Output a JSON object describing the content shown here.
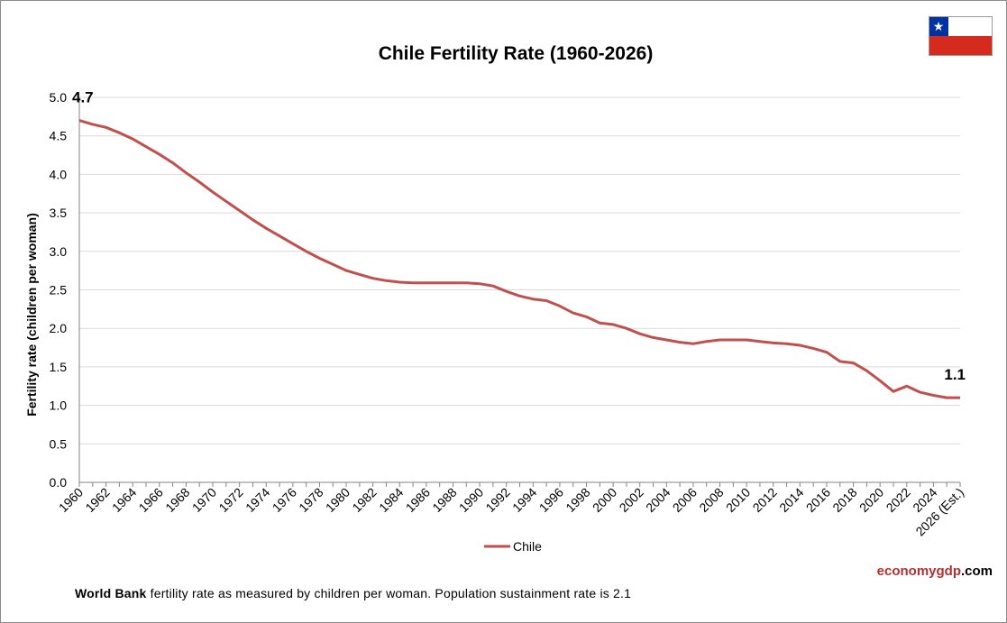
{
  "chart_data": {
    "type": "line",
    "title": "Chile Fertility Rate (1960-2026)",
    "ylabel": "Fertility rate (children per woman)",
    "xlabel": "",
    "ylim": [
      0,
      5
    ],
    "yticks": [
      "0.0",
      "0.5",
      "1.0",
      "1.5",
      "2.0",
      "2.5",
      "3.0",
      "3.5",
      "4.0",
      "4.5",
      "5.0"
    ],
    "grid": "horizontal",
    "legend_position": "bottom",
    "x": [
      1960,
      1961,
      1962,
      1963,
      1964,
      1965,
      1966,
      1967,
      1968,
      1969,
      1970,
      1971,
      1972,
      1973,
      1974,
      1975,
      1976,
      1977,
      1978,
      1979,
      1980,
      1981,
      1982,
      1983,
      1984,
      1985,
      1986,
      1987,
      1988,
      1989,
      1990,
      1991,
      1992,
      1993,
      1994,
      1995,
      1996,
      1997,
      1998,
      1999,
      2000,
      2001,
      2002,
      2003,
      2004,
      2005,
      2006,
      2007,
      2008,
      2009,
      2010,
      2011,
      2012,
      2013,
      2014,
      2015,
      2016,
      2017,
      2018,
      2019,
      2020,
      2021,
      2022,
      2023,
      2024,
      2025,
      2026
    ],
    "x_tick_labels": [
      "1960",
      "1962",
      "1964",
      "1966",
      "1968",
      "1970",
      "1972",
      "1974",
      "1976",
      "1978",
      "1980",
      "1982",
      "1984",
      "1986",
      "1988",
      "1990",
      "1992",
      "1994",
      "1996",
      "1998",
      "2000",
      "2002",
      "2004",
      "2006",
      "2008",
      "2010",
      "2012",
      "2014",
      "2016",
      "2018",
      "2020",
      "2022",
      "2024",
      "2026 (Est.)"
    ],
    "series": [
      {
        "name": "Chile",
        "color": "#c0504d",
        "values": [
          4.7,
          4.65,
          4.61,
          4.54,
          4.46,
          4.36,
          4.26,
          4.15,
          4.02,
          3.9,
          3.77,
          3.65,
          3.53,
          3.41,
          3.3,
          3.2,
          3.1,
          3.0,
          2.91,
          2.83,
          2.75,
          2.7,
          2.65,
          2.62,
          2.6,
          2.59,
          2.59,
          2.59,
          2.59,
          2.59,
          2.58,
          2.55,
          2.48,
          2.42,
          2.38,
          2.36,
          2.29,
          2.2,
          2.15,
          2.07,
          2.05,
          2.0,
          1.93,
          1.88,
          1.85,
          1.82,
          1.8,
          1.83,
          1.85,
          1.85,
          1.85,
          1.83,
          1.81,
          1.8,
          1.78,
          1.74,
          1.69,
          1.57,
          1.55,
          1.45,
          1.32,
          1.18,
          1.25,
          1.17,
          1.13,
          1.1,
          1.1
        ]
      }
    ],
    "annotations": [
      {
        "text": "4.7",
        "x": 1960,
        "y": 4.7
      },
      {
        "text": "1.1",
        "x": 2026,
        "y": 1.1
      }
    ]
  },
  "footer": {
    "source_bold": "World Bank",
    "note": " fertility rate as measured by children per woman.  Population sustainment rate is 2.1"
  },
  "brand": {
    "part1": "economygdp",
    "part2": ".com"
  },
  "flag": {
    "blue": "#0033a0",
    "white": "#ffffff",
    "red": "#d52b1e",
    "star": "★"
  }
}
